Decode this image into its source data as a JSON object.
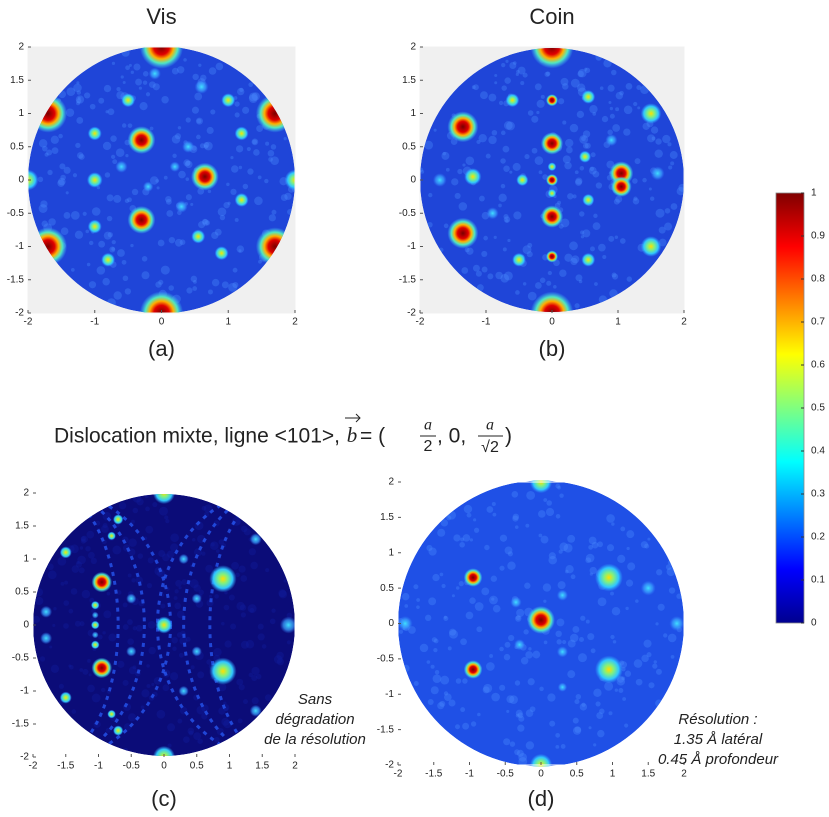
{
  "panels": [
    {
      "title": "Vis",
      "label": "(a)",
      "background": "#1f45d8",
      "frame": "#f0f0f0",
      "xlim": [
        -2,
        2
      ],
      "ylim": [
        -2,
        2
      ],
      "xticks": [
        -2,
        -1,
        0,
        1,
        2
      ],
      "yticks": [
        -2,
        -1.5,
        -1,
        -0.5,
        0,
        0.5,
        1,
        1.5,
        2
      ]
    },
    {
      "title": "Coin",
      "label": "(b)",
      "background": "#1f45d8",
      "frame": "#f0f0f0",
      "xlim": [
        -2,
        2
      ],
      "ylim": [
        -2,
        2
      ],
      "xticks": [
        -2,
        -1,
        0,
        1,
        2
      ],
      "yticks": [
        -2,
        -1.5,
        -1,
        -0.5,
        0,
        0.5,
        1,
        1.5,
        2
      ]
    },
    {
      "label": "(c)",
      "background": "#0b0c78",
      "frame": "#ffffff",
      "annotation": [
        "Sans",
        "dégradation",
        "de la résolution"
      ],
      "xlim": [
        -2,
        2
      ],
      "ylim": [
        -2,
        2
      ],
      "xticks": [
        -2,
        -1.5,
        -1,
        -0.5,
        0,
        0.5,
        1,
        1.5,
        2
      ],
      "yticks": [
        -2,
        -1.5,
        -1,
        -0.5,
        0,
        0.5,
        1,
        1.5,
        2
      ]
    },
    {
      "label": "(d)",
      "background": "#1f50e6",
      "frame": "#ffffff",
      "annotation": [
        "Résolution :",
        "1.35 Å latéral",
        "0.45 Å profondeur"
      ],
      "xlim": [
        -2,
        2
      ],
      "ylim": [
        -2,
        2
      ],
      "xticks": [
        -2,
        -1.5,
        -1,
        -0.5,
        0,
        0.5,
        1,
        1.5,
        2
      ],
      "yticks": [
        -2,
        -1.5,
        -1,
        -0.5,
        0,
        0.5,
        1,
        1.5,
        2
      ]
    }
  ],
  "heading": "Dislocation mixte, ligne <101>, ",
  "formula": [
    "b",
    " = (",
    "a",
    "2",
    ", 0, ",
    "a",
    "√2",
    ")"
  ],
  "colorbar": {
    "lim": [
      0,
      1
    ],
    "ticks": [
      0,
      0.1,
      0.2,
      0.3,
      0.4,
      0.5,
      0.6,
      0.7,
      0.8,
      0.9,
      1
    ]
  }
}
